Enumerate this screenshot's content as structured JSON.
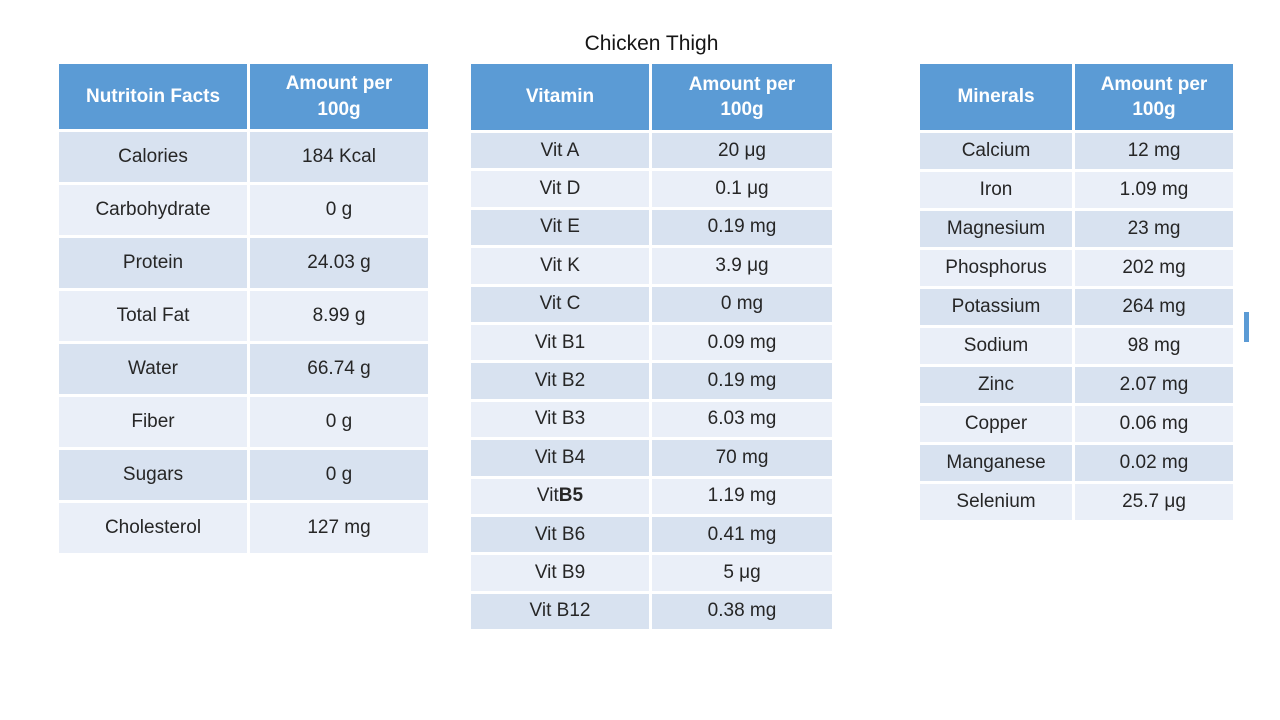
{
  "page": {
    "title": "Chicken Thigh"
  },
  "style": {
    "header_fill": "#5B9BD5",
    "header_text_color": "#FFFFFF",
    "row_dark_fill": "#D8E2F0",
    "row_light_fill": "#EAEFF8",
    "body_text_color": "#262626",
    "background": "#FFFFFF"
  },
  "tables": [
    {
      "name": "nutrition-facts",
      "columns": [
        "Nutritoin Facts",
        "Amount per 100g"
      ],
      "rows": [
        {
          "label": "Calories",
          "amount": "184 Kcal"
        },
        {
          "label": "Carbohydrate",
          "amount": "0 g"
        },
        {
          "label": "Protein",
          "amount": "24.03 g"
        },
        {
          "label": "Total Fat",
          "amount": "8.99 g"
        },
        {
          "label": "Water",
          "amount": "66.74 g"
        },
        {
          "label": "Fiber",
          "amount": "0 g"
        },
        {
          "label": "Sugars",
          "amount": "0 g"
        },
        {
          "label": "Cholesterol",
          "amount": "127 mg"
        }
      ]
    },
    {
      "name": "vitamins",
      "columns": [
        "Vitamin",
        "Amount per 100g"
      ],
      "rows": [
        {
          "label": "Vit A",
          "amount": "20 μg"
        },
        {
          "label": "Vit D",
          "amount": "0.1 μg"
        },
        {
          "label": "Vit E",
          "amount": "0.19 mg"
        },
        {
          "label": "Vit K",
          "amount": "3.9 μg"
        },
        {
          "label": "Vit C",
          "amount": "0 mg"
        },
        {
          "label": "Vit B1",
          "amount": "0.09 mg"
        },
        {
          "label": "Vit B2",
          "amount": "0.19 mg"
        },
        {
          "label": "Vit B3",
          "amount": "6.03 mg"
        },
        {
          "label": "Vit B4",
          "amount": "70 mg"
        },
        {
          "label": "Vit B5",
          "amount": "1.19 mg",
          "bold_label_part": "B5"
        },
        {
          "label": "Vit B6",
          "amount": "0.41 mg"
        },
        {
          "label": "Vit B9",
          "amount": "5 μg"
        },
        {
          "label": "Vit B12",
          "amount": "0.38 mg"
        }
      ]
    },
    {
      "name": "minerals",
      "columns": [
        "Minerals",
        "Amount per 100g"
      ],
      "rows": [
        {
          "label": "Calcium",
          "amount": "12 mg"
        },
        {
          "label": "Iron",
          "amount": "1.09 mg"
        },
        {
          "label": "Magnesium",
          "amount": "23 mg"
        },
        {
          "label": "Phosphorus",
          "amount": "202 mg"
        },
        {
          "label": "Potassium",
          "amount": "264 mg"
        },
        {
          "label": "Sodium",
          "amount": "98 mg"
        },
        {
          "label": "Zinc",
          "amount": "2.07 mg"
        },
        {
          "label": "Copper",
          "amount": "0.06 mg"
        },
        {
          "label": "Manganese",
          "amount": "0.02 mg"
        },
        {
          "label": "Selenium",
          "amount": "25.7 μg"
        }
      ]
    }
  ]
}
